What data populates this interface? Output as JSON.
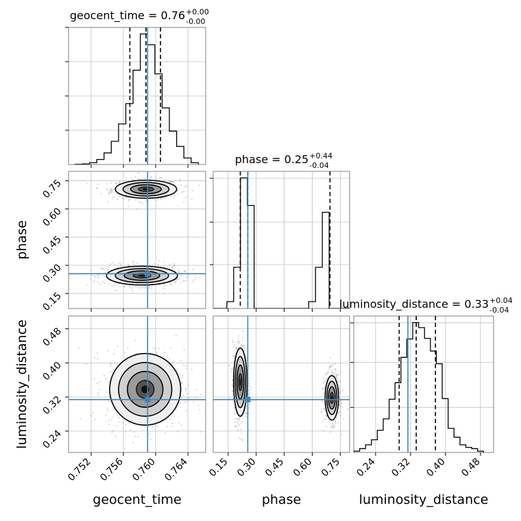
{
  "chart_data": {
    "type": "corner",
    "parameters": [
      {
        "name": "geocent_time",
        "label": "geocent_time",
        "title": "geocent_time = 0.76",
        "median": "0.76",
        "upper": "+0.00",
        "lower": "-0.00",
        "range": [
          0.7492,
          0.7662
        ],
        "ticks": [
          "0.752",
          "0.756",
          "0.760",
          "0.764"
        ],
        "tick_values": [
          0.752,
          0.756,
          0.76,
          0.764
        ],
        "quantiles": [
          0.7568,
          0.7588,
          0.7606
        ],
        "truth": 0.759,
        "hist_edges": [
          0.75,
          0.7509,
          0.7518,
          0.7527,
          0.7536,
          0.7545,
          0.7554,
          0.7563,
          0.7572,
          0.7581,
          0.759,
          0.7599,
          0.7608,
          0.7617,
          0.7626,
          0.7635,
          0.7644,
          0.7653
        ],
        "hist_counts": [
          0.2,
          0.8,
          2.5,
          7,
          16,
          32,
          56,
          84,
          130,
          180,
          165,
          125,
          78,
          46,
          25,
          9,
          2.5
        ]
      },
      {
        "name": "phase",
        "label": "phase",
        "title": "phase = 0.25",
        "median": "0.25",
        "upper": "+0.44",
        "lower": "-0.04",
        "range": [
          0.07,
          0.8
        ],
        "ticks": [
          "0.15",
          "0.30",
          "0.45",
          "0.60",
          "0.75"
        ],
        "tick_values": [
          0.15,
          0.3,
          0.45,
          0.6,
          0.75
        ],
        "quantiles": [
          0.215,
          0.255,
          0.695
        ],
        "truth": 0.255,
        "hist_edges": [
          0.07,
          0.1065,
          0.143,
          0.1795,
          0.216,
          0.2525,
          0.289,
          0.3255,
          0.362,
          0.3985,
          0.435,
          0.4715,
          0.508,
          0.5445,
          0.581,
          0.6175,
          0.654,
          0.6905,
          0.727,
          0.7635,
          0.8
        ],
        "hist_counts": [
          0,
          0,
          10,
          60,
          190,
          150,
          0,
          0,
          0,
          0,
          0,
          0,
          0,
          0,
          10,
          60,
          140,
          0,
          0,
          0
        ]
      },
      {
        "name": "luminosity_distance",
        "label": "luminosity_distance",
        "title": "luminosity_distance = 0.33",
        "median": "0.33",
        "upper": "+0.04",
        "lower": "-0.04",
        "range": [
          0.19,
          0.51
        ],
        "ticks": [
          "0.24",
          "0.32",
          "0.40",
          "0.48"
        ],
        "tick_values": [
          0.24,
          0.32,
          0.4,
          0.48
        ],
        "quantiles": [
          0.294,
          0.333,
          0.377
        ],
        "truth": 0.314,
        "hist_edges": [
          0.19,
          0.2035,
          0.217,
          0.2305,
          0.244,
          0.2575,
          0.271,
          0.2845,
          0.298,
          0.3115,
          0.325,
          0.3385,
          0.352,
          0.3655,
          0.379,
          0.3925,
          0.406,
          0.4195,
          0.433,
          0.4465,
          0.46,
          0.4735,
          0.487
        ],
        "hist_counts": [
          0.2,
          0.6,
          1.2,
          2,
          3.5,
          5.3,
          8.4,
          11,
          15,
          17.9,
          20.5,
          19.7,
          18,
          16,
          14,
          8.5,
          3.8,
          2.4,
          1.2,
          0.8,
          0.6,
          0.2
        ]
      }
    ],
    "pairs": [
      {
        "x": "geocent_time",
        "y": "phase",
        "blobs": [
          {
            "cx": 0.7588,
            "cy": 0.705,
            "sx": 0.0019,
            "sy": 0.024
          },
          {
            "cx": 0.7583,
            "cy": 0.245,
            "sx": 0.0022,
            "sy": 0.025
          }
        ]
      },
      {
        "x": "geocent_time",
        "y": "luminosity_distance",
        "blobs": [
          {
            "cx": 0.7587,
            "cy": 0.338,
            "sx": 0.0022,
            "sy": 0.042
          }
        ]
      },
      {
        "x": "phase",
        "y": "luminosity_distance",
        "blobs": [
          {
            "cx": 0.215,
            "cy": 0.355,
            "sx": 0.018,
            "sy": 0.04
          },
          {
            "cx": 0.705,
            "cy": 0.318,
            "sx": 0.018,
            "sy": 0.026
          }
        ]
      }
    ],
    "grid": true,
    "colors": {
      "truth": "#4682b4",
      "hist": "#000000",
      "scatter": "#8c8c8c",
      "grid": "#bfbfbf",
      "axis": "#808080"
    }
  }
}
